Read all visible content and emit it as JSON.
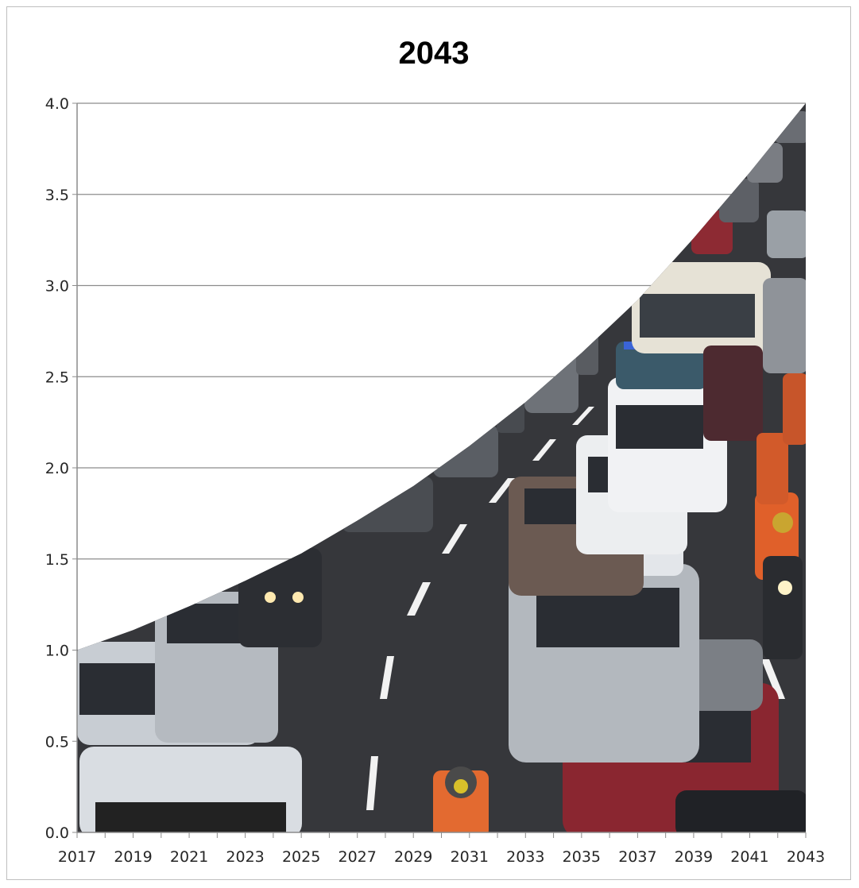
{
  "chart_data": {
    "type": "area",
    "title": "2043",
    "xlabel": "",
    "ylabel": "",
    "x_range": [
      2017,
      2043
    ],
    "ylim": [
      0,
      4
    ],
    "y_ticks": [
      "0.0",
      "0.5",
      "1.0",
      "1.5",
      "2.0",
      "2.5",
      "3.0",
      "3.5",
      "4.0"
    ],
    "x_tick_labels": [
      "2017",
      "2019",
      "2021",
      "2023",
      "2025",
      "2027",
      "2029",
      "2031",
      "2033",
      "2035",
      "2037",
      "2039",
      "2041",
      "2043"
    ],
    "grid": "horizontal",
    "legend": "none",
    "fill": "photo of a traffic jam (road, cars, motorcycles)",
    "series": [
      {
        "x": [
          2017,
          2019,
          2021,
          2023,
          2025,
          2027,
          2029,
          2031,
          2033,
          2035,
          2037,
          2039,
          2041,
          2043
        ],
        "values": [
          1.0,
          1.11,
          1.24,
          1.38,
          1.53,
          1.71,
          1.9,
          2.12,
          2.36,
          2.63,
          2.92,
          3.26,
          3.62,
          4.0
        ]
      }
    ],
    "colors": {
      "grid": "#8c8c8c",
      "axis": "#8c8c8c",
      "road": "#3b3c40",
      "lane_marking": "#f2f2f2"
    }
  }
}
